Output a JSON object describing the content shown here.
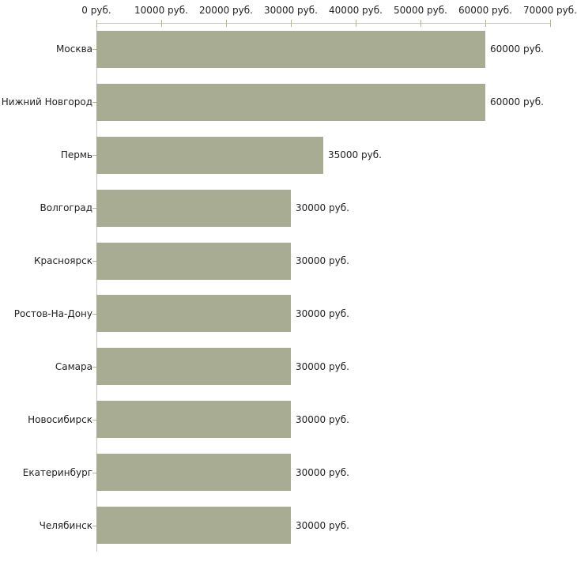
{
  "chart_data": {
    "type": "bar",
    "orientation": "horizontal",
    "title": "",
    "xlabel": "",
    "ylabel": "",
    "categories": [
      "Москва",
      "Нижний Новгород",
      "Пермь",
      "Волгоград",
      "Красноярск",
      "Ростов-На-Дону",
      "Самара",
      "Новосибирск",
      "Екатеринбург",
      "Челябинск"
    ],
    "values": [
      60000,
      60000,
      35000,
      30000,
      30000,
      30000,
      30000,
      30000,
      30000,
      30000
    ],
    "value_labels": [
      "60000 руб.",
      "60000 руб.",
      "35000 руб.",
      "30000 руб.",
      "30000 руб.",
      "30000 руб.",
      "30000 руб.",
      "30000 руб.",
      "30000 руб.",
      "30000 руб."
    ],
    "unit": "руб.",
    "xlim": [
      0,
      70000
    ],
    "x_ticks": [
      0,
      10000,
      20000,
      30000,
      40000,
      50000,
      60000,
      70000
    ],
    "x_tick_labels": [
      "0 руб.",
      "10000 руб.",
      "20000 руб.",
      "30000 руб.",
      "40000 руб.",
      "50000 руб.",
      "60000 руб.",
      "70000 руб."
    ],
    "grid": false,
    "legend": false,
    "axis_position": "top"
  },
  "colors": {
    "bar": "#a8ac93",
    "axis_line": "#c6c6c6",
    "tick": "#b5b58a",
    "text": "#222222",
    "background": "#ffffff"
  }
}
